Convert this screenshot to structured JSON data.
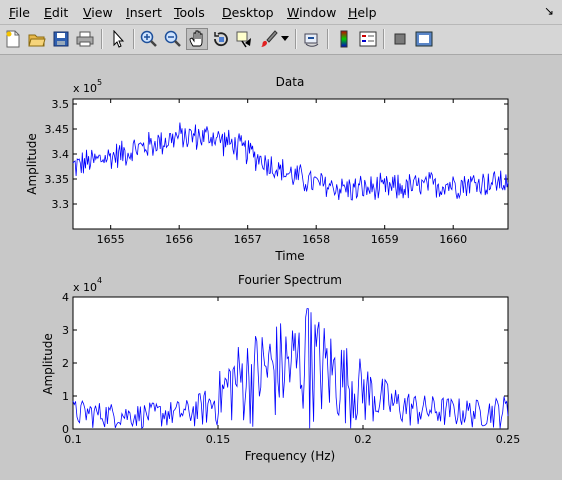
{
  "menu": {
    "items": [
      {
        "label": "File",
        "u": "F",
        "rest": "ile"
      },
      {
        "label": "Edit",
        "u": "E",
        "rest": "dit"
      },
      {
        "label": "View",
        "u": "V",
        "rest": "iew"
      },
      {
        "label": "Insert",
        "u": "I",
        "rest": "nsert"
      },
      {
        "label": "Tools",
        "u": "T",
        "rest": "ools"
      },
      {
        "label": "Desktop",
        "u": "D",
        "rest": "esktop"
      },
      {
        "label": "Window",
        "u": "W",
        "rest": "indow"
      },
      {
        "label": "Help",
        "u": "H",
        "rest": "elp"
      }
    ],
    "dock_arrow": "↘"
  },
  "toolbar": {
    "icons": [
      "new-figure-icon",
      "open-file-icon",
      "save-icon",
      "print-icon",
      "pointer-icon",
      "zoom-in-icon",
      "zoom-out-icon",
      "pan-hand-icon",
      "rotate-3d-icon",
      "data-cursor-icon",
      "brush-icon",
      "brush-dropdown-icon",
      "link-plot-icon",
      "colorbar-icon",
      "legend-icon",
      "hide-plot-tools-icon",
      "show-plot-tools-icon"
    ],
    "pressed": "pan-hand-icon"
  },
  "chart_data": [
    {
      "type": "line",
      "title": "Data",
      "xlabel": "Time",
      "ylabel": "Amplitude",
      "exponent_label": "x 10",
      "exponent": "5",
      "xlim": [
        1654.45,
        1660.8
      ],
      "ylim": [
        3.25,
        3.51
      ],
      "xticks": [
        1655,
        1656,
        1657,
        1658,
        1659,
        1660
      ],
      "yticks": [
        3.3,
        3.35,
        3.4,
        3.45,
        3.5
      ],
      "ytick_labels": [
        "3.3",
        "3.35",
        "3.4",
        "3.45",
        "3.5"
      ],
      "series": [
        {
          "color": "#0000ff",
          "trend_x": [
            1654.45,
            1655.0,
            1655.5,
            1656.0,
            1656.5,
            1657.0,
            1657.5,
            1658.0,
            1658.5,
            1659.0,
            1659.5,
            1660.0,
            1660.8
          ],
          "trend_y": [
            3.375,
            3.395,
            3.415,
            3.435,
            3.435,
            3.405,
            3.365,
            3.34,
            3.33,
            3.33,
            3.335,
            3.34,
            3.345
          ],
          "noise_amplitude": 0.028,
          "samples": 420
        }
      ]
    },
    {
      "type": "line",
      "title": "Fourier Spectrum",
      "xlabel": "Frequency (Hz)",
      "ylabel": "Amplitude",
      "exponent_label": "x 10",
      "exponent": "4",
      "xlim": [
        0.1,
        0.25
      ],
      "ylim": [
        0,
        4
      ],
      "xticks": [
        0.1,
        0.15,
        0.2,
        0.25
      ],
      "xtick_labels": [
        "0.1",
        "0.15",
        "0.2",
        "0.25"
      ],
      "yticks": [
        0,
        1,
        2,
        3,
        4
      ],
      "series": [
        {
          "color": "#0000ff",
          "envelope_x": [
            0.1,
            0.12,
            0.14,
            0.148,
            0.155,
            0.165,
            0.175,
            0.182,
            0.19,
            0.2,
            0.21,
            0.22,
            0.24,
            0.25
          ],
          "envelope_y": [
            0.6,
            0.5,
            0.6,
            0.9,
            1.7,
            2.1,
            2.3,
            2.5,
            2.0,
            1.4,
            0.9,
            0.7,
            0.6,
            0.7
          ],
          "peak_value": 3.65,
          "samples": 330
        }
      ]
    }
  ]
}
